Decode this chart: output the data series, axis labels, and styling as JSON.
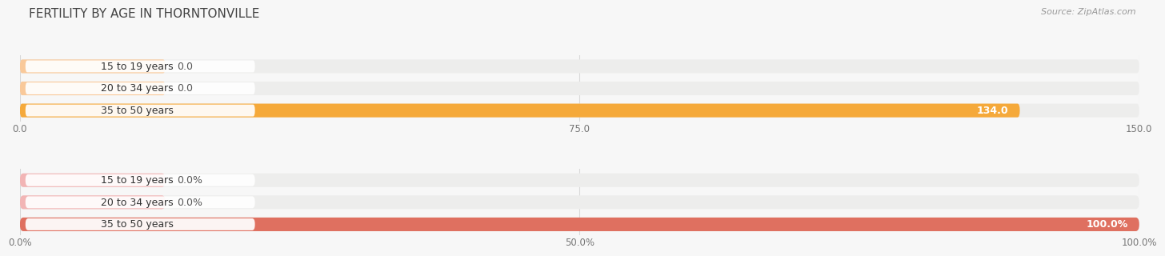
{
  "title": "FERTILITY BY AGE IN THORNTONVILLE",
  "source": "Source: ZipAtlas.com",
  "chart1": {
    "categories": [
      "15 to 19 years",
      "20 to 34 years",
      "35 to 50 years"
    ],
    "values": [
      0.0,
      0.0,
      134.0
    ],
    "bar_colors": [
      "#f9c99a",
      "#f9c99a",
      "#f5a93a"
    ],
    "bar_bg_color": "#ededec",
    "xlim": [
      0,
      150
    ],
    "xticks": [
      0.0,
      75.0,
      150.0
    ],
    "xtick_labels": [
      "0.0",
      "75.0",
      "150.0"
    ],
    "value_labels": [
      "0.0",
      "0.0",
      "134.0"
    ]
  },
  "chart2": {
    "categories": [
      "15 to 19 years",
      "20 to 34 years",
      "35 to 50 years"
    ],
    "values": [
      0.0,
      0.0,
      100.0
    ],
    "bar_colors": [
      "#f2b5b5",
      "#f2b5b5",
      "#df7060"
    ],
    "bar_bg_color": "#ededec",
    "xlim": [
      0,
      100
    ],
    "xticks": [
      0.0,
      50.0,
      100.0
    ],
    "xtick_labels": [
      "0.0%",
      "50.0%",
      "100.0%"
    ],
    "value_labels": [
      "0.0%",
      "0.0%",
      "100.0%"
    ]
  },
  "bg_color": "#f7f7f7",
  "bar_height": 0.62,
  "label_fontsize": 9.0,
  "tick_fontsize": 8.5,
  "title_fontsize": 11,
  "source_fontsize": 8
}
